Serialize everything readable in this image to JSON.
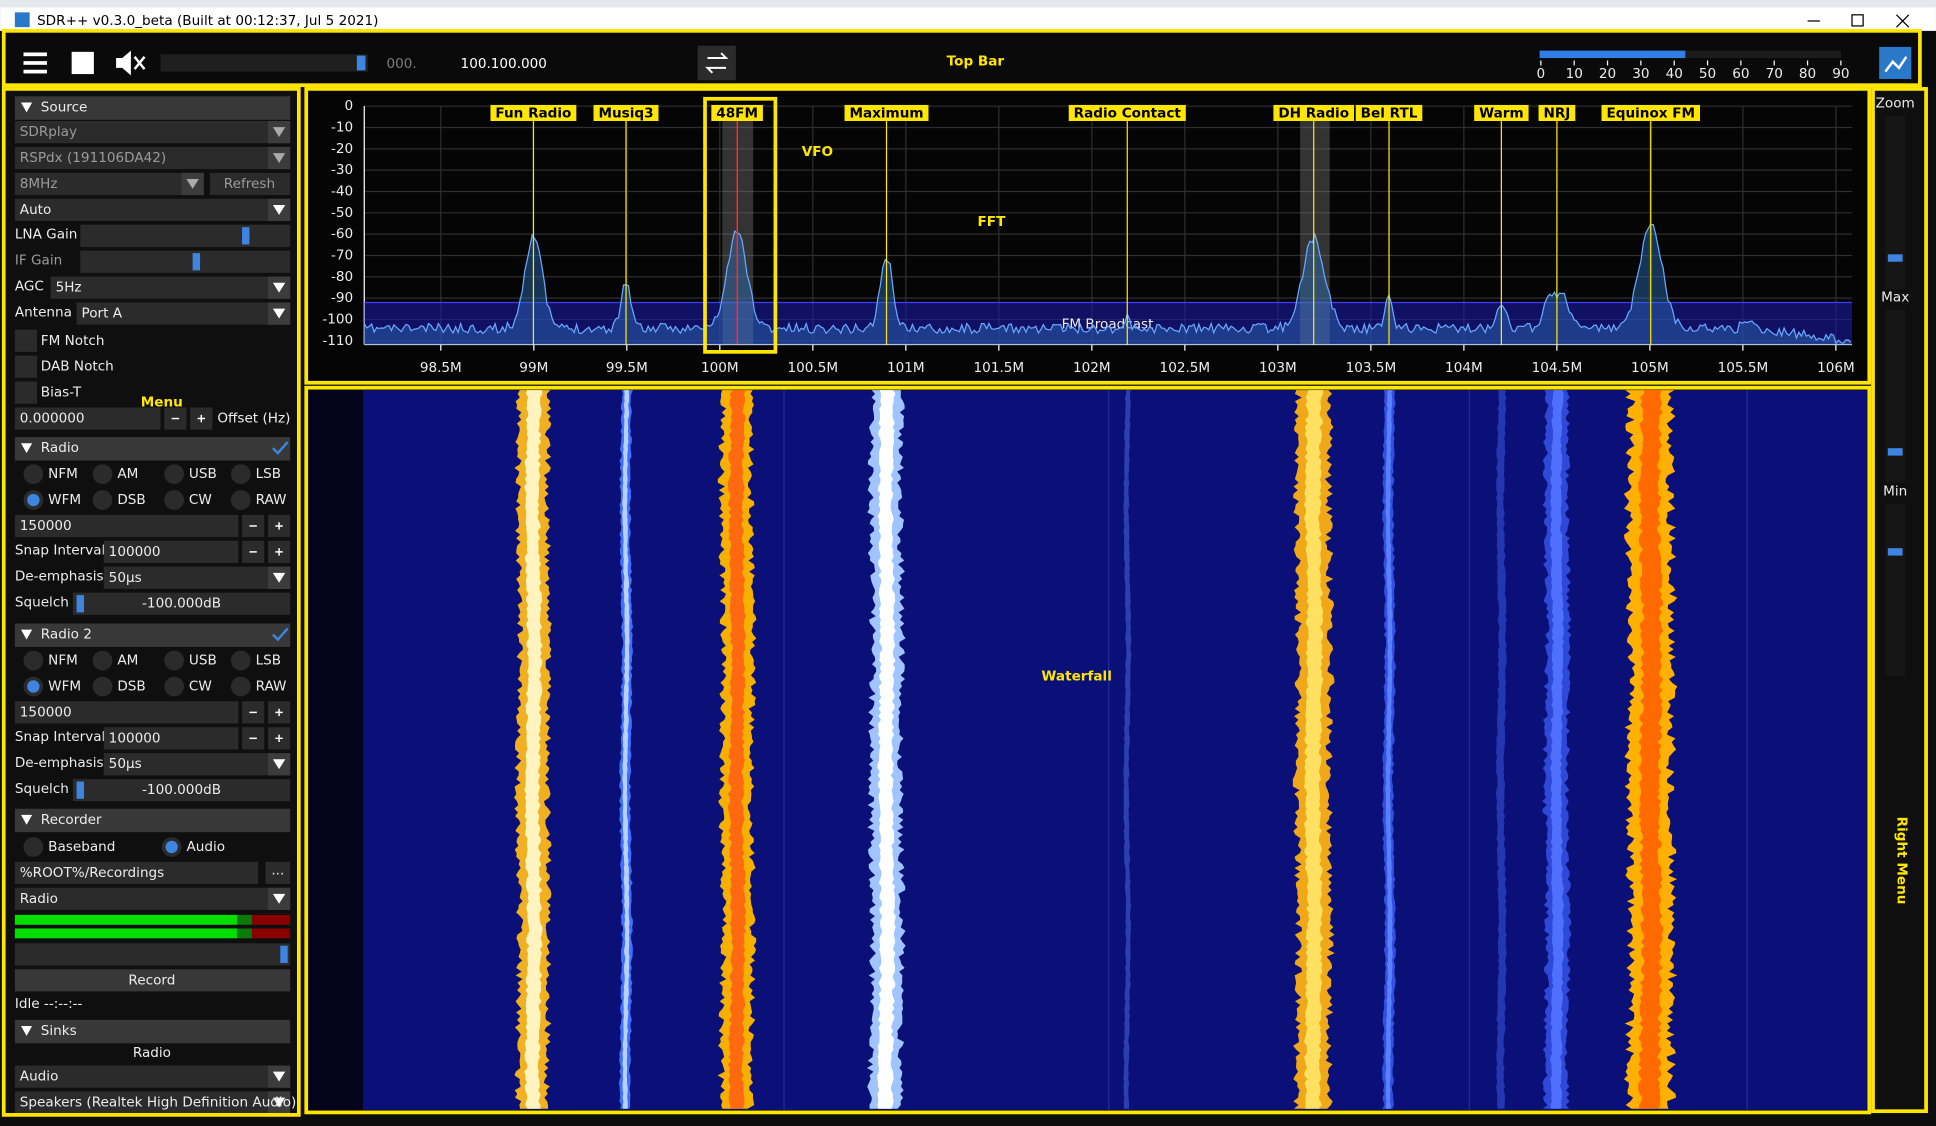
{
  "window": {
    "title": "SDR++ v0.3.0_beta (Built at 00:12:37, Jul  5 2021)"
  },
  "top_bar": {
    "label": "Top Bar",
    "frequency_prefix": "000.",
    "frequency": "100.100.000",
    "snr_ticks": [
      0,
      10,
      20,
      30,
      40,
      50,
      60,
      70,
      80,
      90
    ]
  },
  "menu": {
    "label": "Menu",
    "source": {
      "header": "Source",
      "device": "SDRplay",
      "serial": "RSPdx (191106DA42)",
      "bandwidth": "8MHz",
      "refresh": "Refresh",
      "mode": "Auto",
      "lna_gain": "LNA Gain",
      "if_gain": "IF Gain",
      "agc": "AGC",
      "agc_value": "5Hz",
      "antenna": "Antenna",
      "antenna_value": "Port A",
      "fm_notch": "FM Notch",
      "dab_notch": "DAB Notch",
      "bias_t": "Bias-T",
      "offset": "0.000000",
      "offset_label": "Offset (Hz)"
    },
    "radios": [
      {
        "header": "Radio",
        "modes": [
          "NFM",
          "AM",
          "USB",
          "LSB",
          "WFM",
          "DSB",
          "CW",
          "RAW"
        ],
        "bandwidth": "150000",
        "snap_label": "Snap Interval",
        "snap": "100000",
        "deemph_label": "De-emphasis",
        "deemph": "50µs",
        "squelch_label": "Squelch",
        "squelch": "-100.000dB"
      },
      {
        "header": "Radio 2",
        "modes": [
          "NFM",
          "AM",
          "USB",
          "LSB",
          "WFM",
          "DSB",
          "CW",
          "RAW"
        ],
        "bandwidth": "150000",
        "snap_label": "Snap Interval",
        "snap": "100000",
        "deemph_label": "De-emphasis",
        "deemph": "50µs",
        "squelch_label": "Squelch",
        "squelch": "-100.000dB"
      }
    ],
    "recorder": {
      "header": "Recorder",
      "baseband": "Baseband",
      "audio": "Audio",
      "path": "%ROOT%/Recordings",
      "path_button": "...",
      "stream": "Radio",
      "record": "Record",
      "status": "Idle --:--:--"
    },
    "sinks": {
      "header": "Sinks",
      "stream": "Radio",
      "sink": "Audio",
      "device": "Speakers (Realtek High Definition Audio)"
    }
  },
  "fft": {
    "label": "FFT",
    "vfo_label": "VFO",
    "band_label": "FM Broadcast",
    "y_ticks": [
      0,
      -10,
      -20,
      -30,
      -40,
      -50,
      -60,
      -70,
      -80,
      -90,
      -100,
      -110
    ],
    "x_ticks": [
      "98.5M",
      "99M",
      "99.5M",
      "100M",
      "100.5M",
      "101M",
      "101.5M",
      "102M",
      "102.5M",
      "103M",
      "103.5M",
      "104M",
      "104.5M",
      "105M",
      "105.5M",
      "106M"
    ],
    "stations": [
      "Fun Radio",
      "Musiq3",
      "48FM",
      "Maximum",
      "Radio Contact",
      "DH Radio",
      "Bel RTL",
      "Warm",
      "NRJ",
      "Equinox FM"
    ]
  },
  "waterfall": {
    "label": "Waterfall"
  },
  "right_menu": {
    "label": "Right Menu",
    "zoom": "Zoom",
    "max": "Max",
    "min": "Min"
  }
}
